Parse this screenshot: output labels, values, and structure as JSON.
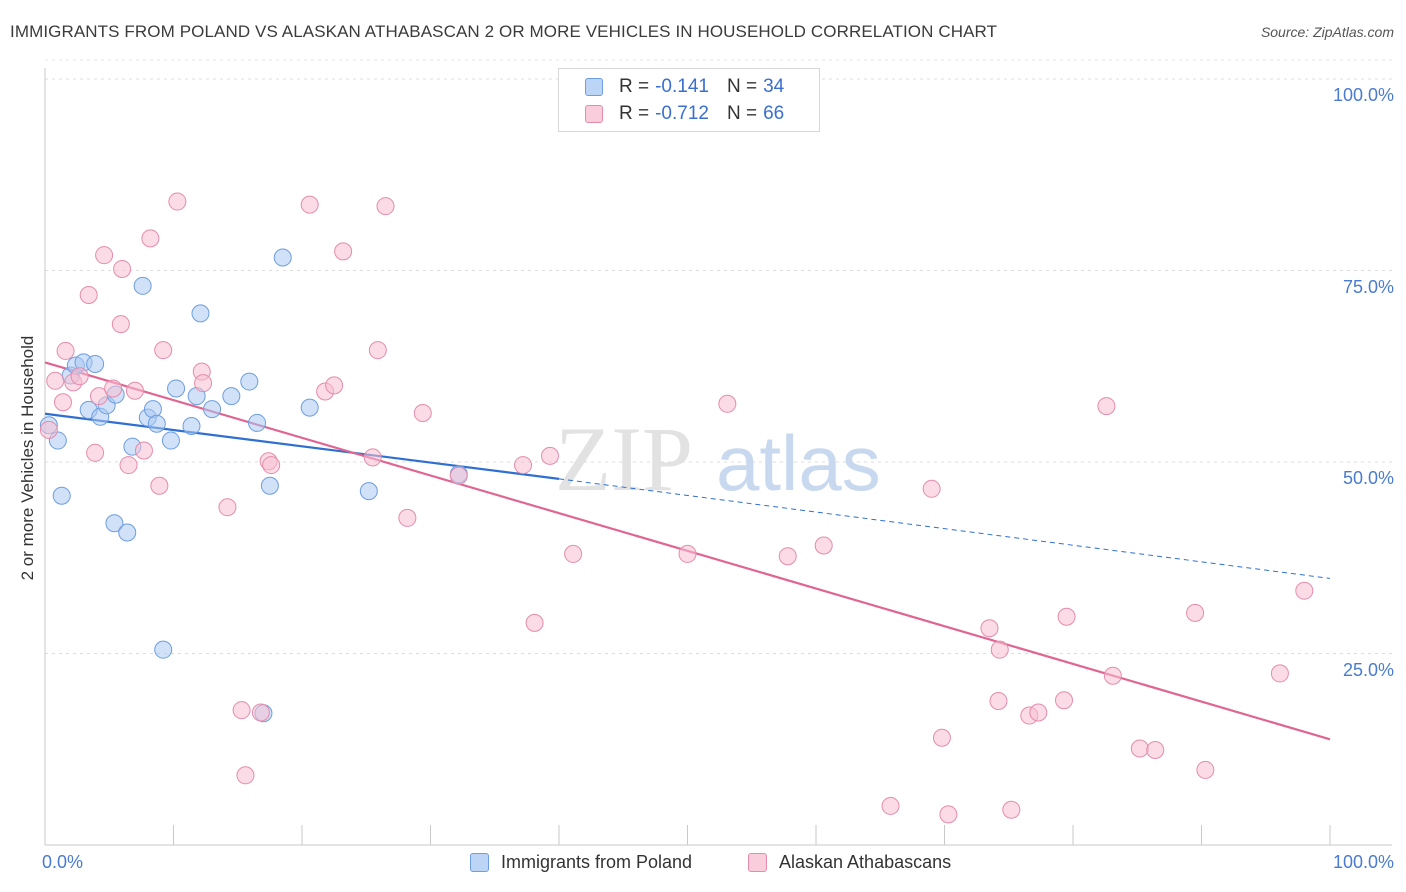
{
  "title": "IMMIGRANTS FROM POLAND VS ALASKAN ATHABASCAN 2 OR MORE VEHICLES IN HOUSEHOLD CORRELATION CHART",
  "source": "Source: ZipAtlas.com",
  "watermark": {
    "zip": "ZIP",
    "atlas": "atlas"
  },
  "legend": {
    "rows": [
      {
        "r_label": "R =",
        "r_value": "-0.141",
        "n_label": "N =",
        "n_value": "34"
      },
      {
        "r_label": "R =",
        "r_value": "-0.712",
        "n_label": "N =",
        "n_value": "66"
      }
    ]
  },
  "chart_data": {
    "type": "scatter",
    "title": "IMMIGRANTS FROM POLAND VS ALASKAN ATHABASCAN 2 OR MORE VEHICLES IN HOUSEHOLD CORRELATION CHART",
    "xlabel": "",
    "ylabel": "2 or more Vehicles in Household",
    "xlim": [
      0,
      100
    ],
    "ylim": [
      0,
      100
    ],
    "x_tick_labels": [
      "0.0%",
      "100.0%"
    ],
    "y_tick_labels": [
      "100.0%",
      "75.0%",
      "50.0%",
      "25.0%"
    ],
    "y_tick_values": [
      100,
      75,
      50,
      25
    ],
    "grid": true,
    "legend_position": "bottom",
    "series": [
      {
        "name": "Immigrants from Poland",
        "color": "#a9c8f3",
        "edge": "#6d9ee0",
        "line_color": "#2f6fd1",
        "trend": {
          "x0": 0,
          "y0": 56.3,
          "x1": 40,
          "y1": 47.8,
          "dashed_to_x": 100,
          "dashed_to_y": 34.8
        },
        "points": [
          [
            0.3,
            54.8
          ],
          [
            1.0,
            52.8
          ],
          [
            1.3,
            45.6
          ],
          [
            2.0,
            61.3
          ],
          [
            2.4,
            62.6
          ],
          [
            3.0,
            63.0
          ],
          [
            3.4,
            56.8
          ],
          [
            3.9,
            62.8
          ],
          [
            4.3,
            55.9
          ],
          [
            4.8,
            57.4
          ],
          [
            5.5,
            58.8
          ],
          [
            5.4,
            42.0
          ],
          [
            6.4,
            40.8
          ],
          [
            6.8,
            52.0
          ],
          [
            7.6,
            73.0
          ],
          [
            8.0,
            55.8
          ],
          [
            8.4,
            56.9
          ],
          [
            8.7,
            55.0
          ],
          [
            9.2,
            25.5
          ],
          [
            9.8,
            52.8
          ],
          [
            10.2,
            59.6
          ],
          [
            11.4,
            54.7
          ],
          [
            11.8,
            58.6
          ],
          [
            12.1,
            69.4
          ],
          [
            13.0,
            56.9
          ],
          [
            14.5,
            58.6
          ],
          [
            15.9,
            60.5
          ],
          [
            16.5,
            55.1
          ],
          [
            17.0,
            17.2
          ],
          [
            17.5,
            46.9
          ],
          [
            18.5,
            76.7
          ],
          [
            20.6,
            57.1
          ],
          [
            25.2,
            46.2
          ],
          [
            32.2,
            48.4
          ]
        ]
      },
      {
        "name": "Alaskan Athabascans",
        "color": "#f7bfd2",
        "edge": "#e48cac",
        "line_color": "#e06592",
        "trend": {
          "x0": 0,
          "y0": 63.0,
          "x1": 100,
          "y1": 13.8
        },
        "points": [
          [
            0.3,
            54.2
          ],
          [
            0.8,
            60.6
          ],
          [
            1.4,
            57.8
          ],
          [
            1.6,
            64.5
          ],
          [
            2.2,
            60.4
          ],
          [
            2.7,
            61.2
          ],
          [
            3.4,
            71.8
          ],
          [
            3.9,
            51.2
          ],
          [
            4.2,
            58.6
          ],
          [
            4.6,
            77.0
          ],
          [
            5.3,
            59.6
          ],
          [
            5.9,
            68.0
          ],
          [
            6.0,
            75.2
          ],
          [
            6.5,
            49.6
          ],
          [
            7.0,
            59.3
          ],
          [
            7.7,
            51.5
          ],
          [
            8.2,
            79.2
          ],
          [
            8.9,
            46.9
          ],
          [
            9.2,
            64.6
          ],
          [
            10.3,
            84.0
          ],
          [
            12.2,
            61.8
          ],
          [
            12.3,
            60.3
          ],
          [
            14.2,
            44.1
          ],
          [
            15.3,
            17.6
          ],
          [
            15.6,
            9.1
          ],
          [
            16.8,
            17.3
          ],
          [
            17.4,
            50.1
          ],
          [
            17.6,
            49.6
          ],
          [
            20.6,
            83.6
          ],
          [
            21.8,
            59.2
          ],
          [
            22.5,
            60.0
          ],
          [
            23.2,
            77.5
          ],
          [
            25.5,
            50.6
          ],
          [
            25.9,
            64.6
          ],
          [
            26.5,
            83.4
          ],
          [
            28.2,
            42.7
          ],
          [
            29.4,
            56.4
          ],
          [
            32.2,
            48.2
          ],
          [
            37.2,
            49.6
          ],
          [
            38.1,
            29.0
          ],
          [
            39.3,
            50.8
          ],
          [
            41.1,
            38.0
          ],
          [
            50.0,
            38.0
          ],
          [
            53.1,
            57.6
          ],
          [
            57.8,
            37.7
          ],
          [
            60.6,
            39.1
          ],
          [
            65.8,
            5.1
          ],
          [
            69.0,
            46.5
          ],
          [
            69.8,
            14.0
          ],
          [
            70.3,
            4.0
          ],
          [
            73.5,
            28.3
          ],
          [
            74.2,
            18.8
          ],
          [
            74.3,
            25.5
          ],
          [
            75.2,
            4.6
          ],
          [
            76.6,
            16.9
          ],
          [
            77.3,
            17.3
          ],
          [
            79.3,
            18.9
          ],
          [
            79.5,
            29.8
          ],
          [
            83.1,
            22.1
          ],
          [
            82.6,
            57.3
          ],
          [
            85.2,
            12.6
          ],
          [
            86.4,
            12.4
          ],
          [
            89.5,
            30.3
          ],
          [
            90.3,
            9.8
          ],
          [
            96.1,
            22.4
          ],
          [
            98.0,
            33.2
          ]
        ]
      }
    ]
  }
}
